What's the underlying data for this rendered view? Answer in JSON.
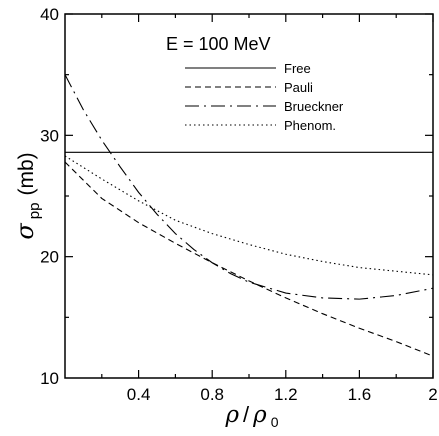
{
  "chart_data": {
    "type": "line",
    "annotation": "E = 100 MeV",
    "xlabel": {
      "symbol": "ρ",
      "slash": "/",
      "symbol2": "ρ",
      "subscript": "0"
    },
    "ylabel": {
      "symbol": "σ",
      "subscript": "pp",
      "units": "(mb)"
    },
    "xlim": [
      0.0,
      2.0
    ],
    "ylim": [
      10,
      40
    ],
    "x_ticks": [
      0.4,
      0.8,
      1.2,
      1.6,
      2.0
    ],
    "x_tick_labels": [
      "0.4",
      "0.8",
      "1.2",
      "1.6",
      "2"
    ],
    "y_ticks": [
      10,
      20,
      30,
      40
    ],
    "y_tick_labels": [
      "10",
      "20",
      "30",
      "40"
    ],
    "legend_position": "top-right",
    "series": [
      {
        "name": "Free",
        "style": "solid",
        "x": [
          0.0,
          2.0
        ],
        "y": [
          28.6,
          28.6
        ]
      },
      {
        "name": "Pauli",
        "style": "dashed",
        "x": [
          0.0,
          0.2,
          0.4,
          0.6,
          0.8,
          1.0,
          1.2,
          1.4,
          1.6,
          1.8,
          2.0
        ],
        "y": [
          27.8,
          24.8,
          22.8,
          21.1,
          19.5,
          18.0,
          16.6,
          15.3,
          14.1,
          13.0,
          11.8
        ]
      },
      {
        "name": "Brueckner",
        "style": "dash-dot",
        "x": [
          0.0,
          0.1,
          0.2,
          0.3,
          0.4,
          0.5,
          0.6,
          0.7,
          0.8,
          0.9,
          1.0,
          1.2,
          1.4,
          1.6,
          1.8,
          2.0
        ],
        "y": [
          35.0,
          32.1,
          29.6,
          27.4,
          25.3,
          23.5,
          21.9,
          20.6,
          19.5,
          18.6,
          17.9,
          17.0,
          16.6,
          16.5,
          16.8,
          17.4
        ]
      },
      {
        "name": "Phenom.",
        "style": "dotted",
        "x": [
          0.0,
          0.2,
          0.4,
          0.6,
          0.8,
          1.0,
          1.2,
          1.4,
          1.6,
          1.8,
          2.0
        ],
        "y": [
          28.3,
          26.4,
          24.6,
          23.0,
          21.9,
          21.0,
          20.2,
          19.6,
          19.1,
          18.8,
          18.5
        ]
      }
    ]
  }
}
